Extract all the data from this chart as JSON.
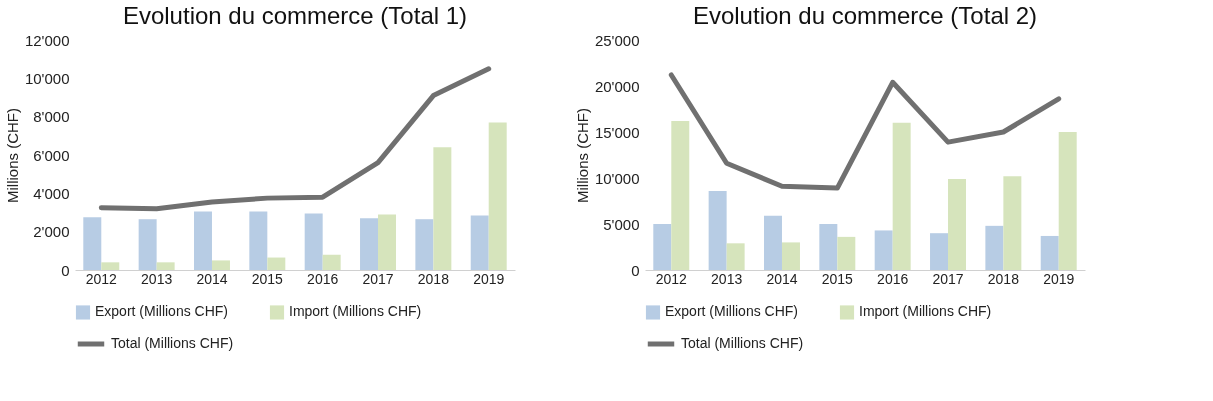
{
  "chart_data": [
    {
      "type": "bar",
      "title": "Evolution du commerce (Total 1)",
      "ylabel": "Millions (CHF)",
      "categories": [
        "2012",
        "2013",
        "2014",
        "2015",
        "2016",
        "2017",
        "2018",
        "2019"
      ],
      "series": [
        {
          "name": "Export (Millions CHF)",
          "color": "#b7cce4",
          "values": [
            2750,
            2650,
            3050,
            3050,
            2950,
            2700,
            2650,
            2850
          ]
        },
        {
          "name": "Import (Millions CHF)",
          "color": "#d6e4bc",
          "values": [
            400,
            400,
            500,
            650,
            800,
            2900,
            6400,
            7700
          ]
        },
        {
          "name": "Total (Millions CHF)",
          "type": "line",
          "color": "#707070",
          "values": [
            3250,
            3200,
            3550,
            3750,
            3800,
            5600,
            9100,
            10500
          ]
        }
      ],
      "ylim": [
        0,
        12000
      ],
      "yticks": [
        0,
        {
          "value": 2000,
          "label": "2'000"
        },
        {
          "value": 4000,
          "label": "4'000"
        },
        {
          "value": 6000,
          "label": "6'000"
        },
        {
          "value": 8000,
          "label": "8'000"
        },
        {
          "value": 10000,
          "label": "10'000"
        },
        {
          "value": 12000,
          "label": "12'000"
        }
      ],
      "legend": "bottom"
    },
    {
      "type": "bar",
      "title": "Evolution du commerce (Total 2)",
      "ylabel": "Millions (CHF)",
      "categories": [
        "2012",
        "2013",
        "2014",
        "2015",
        "2016",
        "2017",
        "2018",
        "2019"
      ],
      "series": [
        {
          "name": "Export (Millions CHF)",
          "color": "#b7cce4",
          "values": [
            5000,
            8600,
            5900,
            5000,
            4300,
            4000,
            4800,
            3700
          ]
        },
        {
          "name": "Import (Millions CHF)",
          "color": "#d6e4bc",
          "values": [
            16200,
            2900,
            3000,
            3600,
            16000,
            9900,
            10200,
            15000
          ]
        },
        {
          "name": "Total (Millions CHF)",
          "type": "line",
          "color": "#707070",
          "values": [
            21200,
            11600,
            9100,
            8900,
            20400,
            13900,
            15000,
            18600
          ]
        }
      ],
      "ylim": [
        0,
        25000
      ],
      "yticks": [
        0,
        {
          "value": 5000,
          "label": "5'000"
        },
        {
          "value": 10000,
          "label": "10'000"
        },
        {
          "value": 15000,
          "label": "15'000"
        },
        {
          "value": 20000,
          "label": "20'000"
        },
        {
          "value": 25000,
          "label": "25'000"
        }
      ],
      "legend": "bottom"
    }
  ]
}
